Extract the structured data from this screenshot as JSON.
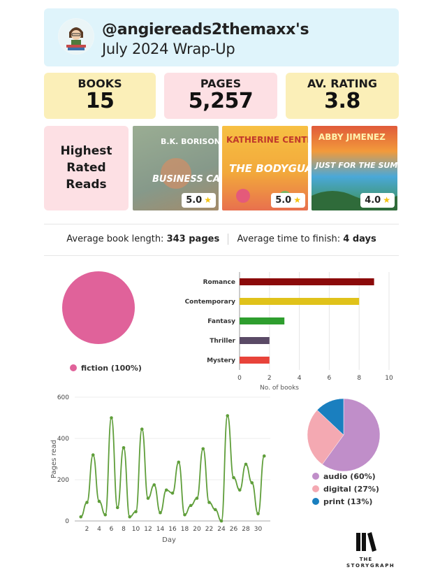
{
  "header": {
    "handle": "@angiereads2themaxx's",
    "subtitle": "July 2024 Wrap-Up"
  },
  "stats": [
    {
      "label": "BOOKS",
      "value": "15"
    },
    {
      "label": "PAGES",
      "value": "5,257"
    },
    {
      "label": "AV. RATING",
      "value": "3.8"
    }
  ],
  "highest_rated": {
    "label_lines": [
      "Highest",
      "Rated",
      "Reads"
    ],
    "books": [
      {
        "author": "B.K. BORISON",
        "title": "BUSINESS CASUAL",
        "rating": "5.0",
        "colors": [
          "#8fa38c",
          "#c08a5e"
        ]
      },
      {
        "author": "KATHERINE CENTER",
        "title": "THE BODYGUARD",
        "rating": "5.0",
        "colors": [
          "#f2b23a",
          "#e0624e"
        ]
      },
      {
        "author": "ABBY JIMENEZ",
        "title": "JUST FOR THE SUMMER",
        "rating": "4.0",
        "colors": [
          "#3aa7d8",
          "#e56a3c"
        ]
      }
    ]
  },
  "averages": {
    "length_label": "Average book length:",
    "length_value": "343 pages",
    "time_label": "Average time to finish:",
    "time_value": "4 days"
  },
  "chart_data": [
    {
      "type": "pie",
      "slices": [
        {
          "label": "fiction (100%)",
          "value": 100,
          "color": "#e0629a"
        }
      ]
    },
    {
      "type": "bar",
      "orientation": "horizontal",
      "categories": [
        "Romance",
        "Contemporary",
        "Fantasy",
        "Thriller",
        "Mystery"
      ],
      "values": [
        9,
        8,
        3,
        2,
        2
      ],
      "colors": [
        "#8b0a0a",
        "#e0c21a",
        "#2e9e2e",
        "#5a4a66",
        "#e8433a"
      ],
      "xlabel": "No. of books",
      "xlim": [
        0,
        10
      ],
      "xticks": [
        0,
        2,
        4,
        6,
        8,
        10
      ]
    },
    {
      "type": "line",
      "x": [
        1,
        2,
        3,
        4,
        5,
        6,
        7,
        8,
        9,
        10,
        11,
        12,
        13,
        14,
        15,
        16,
        17,
        18,
        19,
        20,
        21,
        22,
        23,
        24,
        25,
        26,
        27,
        28,
        29,
        30,
        31
      ],
      "y": [
        20,
        90,
        320,
        95,
        30,
        500,
        65,
        355,
        20,
        45,
        445,
        110,
        175,
        40,
        150,
        135,
        285,
        30,
        75,
        110,
        350,
        90,
        55,
        0,
        510,
        210,
        150,
        275,
        185,
        35,
        315
      ],
      "xlabel": "Day",
      "ylabel": "Pages read",
      "ylim": [
        0,
        600
      ],
      "yticks": [
        0,
        200,
        400,
        600
      ],
      "xticks": [
        2,
        4,
        6,
        8,
        10,
        12,
        14,
        16,
        18,
        20,
        22,
        24,
        26,
        28,
        30
      ],
      "color": "#5f9e3a"
    },
    {
      "type": "pie",
      "slices": [
        {
          "label": "audio (60%)",
          "value": 60,
          "color": "#c08ec9"
        },
        {
          "label": "digital (27%)",
          "value": 27,
          "color": "#f4a9b2"
        },
        {
          "label": "print (13%)",
          "value": 13,
          "color": "#1a7fbf"
        }
      ]
    }
  ],
  "brand": {
    "line1": "THE",
    "line2": "STORYGRAPH"
  }
}
